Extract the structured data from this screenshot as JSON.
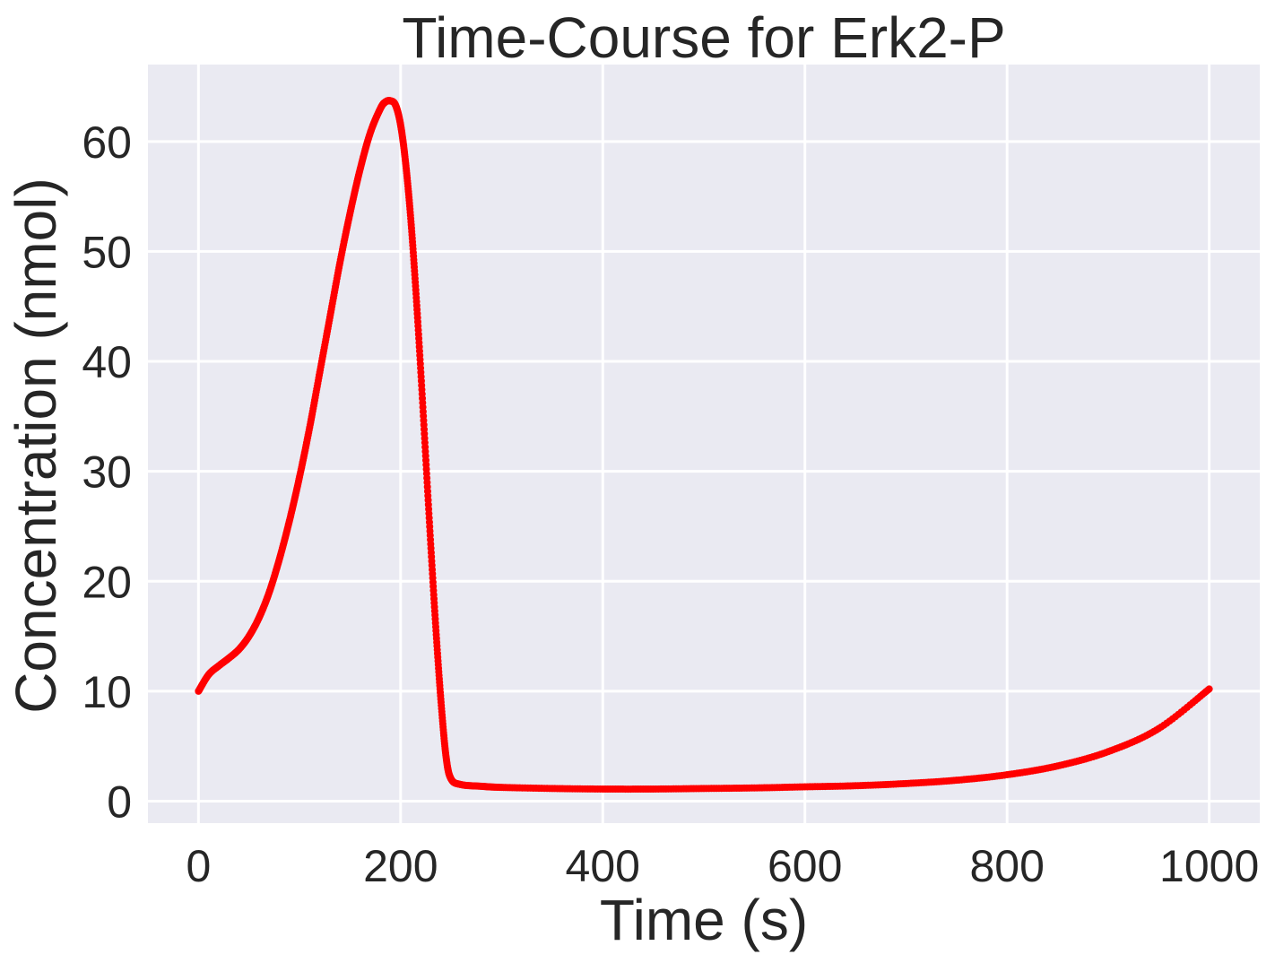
{
  "chart_data": {
    "type": "line",
    "title": "Time-Course for Erk2-P",
    "xlabel": "Time (s)",
    "ylabel": "Concentration (nmol)",
    "xlim": [
      -50,
      1050
    ],
    "ylim": [
      -2,
      67
    ],
    "xticks": [
      0,
      200,
      400,
      600,
      800,
      1000
    ],
    "yticks": [
      0,
      10,
      20,
      30,
      40,
      50,
      60
    ],
    "grid": true,
    "background_color": "#eaeaf2",
    "grid_color": "#ffffff",
    "series": [
      {
        "style": "line",
        "color": "#000000",
        "x": [
          0,
          10,
          20,
          30,
          40,
          50,
          60,
          70,
          80,
          90,
          100,
          110,
          120,
          130,
          140,
          150,
          160,
          170,
          180,
          185,
          190,
          195,
          200,
          205,
          210,
          215,
          220,
          225,
          230,
          235,
          240,
          245,
          250,
          260,
          280,
          300,
          350,
          400,
          450,
          500,
          550,
          600,
          650,
          700,
          750,
          800,
          850,
          900,
          950,
          1000
        ],
        "y": [
          10,
          11.5,
          12.3,
          13.0,
          13.8,
          15.0,
          16.7,
          19.0,
          22.0,
          25.5,
          29.5,
          34.0,
          39.0,
          44.0,
          49.0,
          53.5,
          57.5,
          60.8,
          63.0,
          63.6,
          63.7,
          63.3,
          61.5,
          58.0,
          53.0,
          46.5,
          39.0,
          31.0,
          23.0,
          15.5,
          9.0,
          4.0,
          2.0,
          1.5,
          1.35,
          1.25,
          1.15,
          1.1,
          1.1,
          1.15,
          1.2,
          1.3,
          1.4,
          1.6,
          1.9,
          2.4,
          3.2,
          4.5,
          6.6,
          10.2
        ]
      },
      {
        "style": "points",
        "color": "#ff0000",
        "x": [
          0,
          10,
          20,
          30,
          40,
          50,
          60,
          70,
          80,
          90,
          100,
          110,
          120,
          130,
          140,
          150,
          160,
          170,
          180,
          185,
          190,
          195,
          200,
          205,
          210,
          215,
          220,
          225,
          230,
          235,
          240,
          245,
          250,
          260,
          280,
          300,
          350,
          400,
          450,
          500,
          550,
          600,
          650,
          700,
          750,
          800,
          850,
          900,
          950,
          1000
        ],
        "y": [
          10,
          11.5,
          12.3,
          13.0,
          13.8,
          15.0,
          16.7,
          19.0,
          22.0,
          25.5,
          29.5,
          34.0,
          39.0,
          44.0,
          49.0,
          53.5,
          57.5,
          60.8,
          63.0,
          63.6,
          63.7,
          63.3,
          61.5,
          58.0,
          53.0,
          46.5,
          39.0,
          31.0,
          23.0,
          15.5,
          9.0,
          4.0,
          2.0,
          1.5,
          1.35,
          1.25,
          1.15,
          1.1,
          1.1,
          1.15,
          1.2,
          1.3,
          1.4,
          1.6,
          1.9,
          2.4,
          3.2,
          4.5,
          6.6,
          10.2
        ]
      }
    ]
  }
}
